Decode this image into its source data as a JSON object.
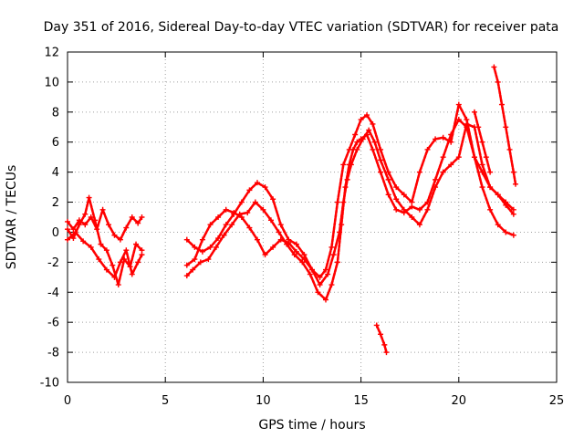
{
  "chart_data": {
    "type": "scatter",
    "title": "Day 351 of 2016, Sidereal Day-to-day VTEC variation (SDTVAR) for receiver pata",
    "xlabel": "GPS time / hours",
    "ylabel": "SDTVAR / TECUs",
    "xlim": [
      0,
      25
    ],
    "ylim": [
      -10,
      12
    ],
    "xticks": [
      "0",
      "5",
      "10",
      "15",
      "20",
      "25"
    ],
    "yticks": [
      "-10",
      "-8",
      "-6",
      "-4",
      "-2",
      "0",
      "2",
      "4",
      "6",
      "8",
      "10",
      "12"
    ],
    "grid": true,
    "marker": "+",
    "color": "#ff0000",
    "series": [
      {
        "name": "s1",
        "x": [
          0,
          0.3,
          0.6,
          0.9,
          1.2,
          1.5,
          1.8,
          2.1,
          2.4,
          2.7,
          3.0,
          3.3,
          3.6,
          3.8
        ],
        "y": [
          0.7,
          0.2,
          0.8,
          0.5,
          1.0,
          0.2,
          1.5,
          0.5,
          -0.2,
          -0.5,
          0.3,
          1.0,
          0.6,
          1.0
        ]
      },
      {
        "name": "s2",
        "x": [
          0,
          0.3,
          0.6,
          0.9,
          1.1,
          1.4,
          1.7,
          2.0,
          2.3,
          2.6,
          2.9,
          3.2,
          3.5,
          3.8
        ],
        "y": [
          0.2,
          -0.4,
          0.5,
          1.2,
          2.3,
          0.8,
          -0.8,
          -1.2,
          -2.2,
          -3.5,
          -1.8,
          -2.3,
          -0.8,
          -1.2
        ]
      },
      {
        "name": "s3",
        "x": [
          0,
          0.4,
          0.8,
          1.2,
          1.6,
          2.0,
          2.4,
          2.7,
          3.0,
          3.3,
          3.6,
          3.8
        ],
        "y": [
          -0.5,
          0.0,
          -0.6,
          -1.0,
          -1.8,
          -2.5,
          -3.0,
          -2.0,
          -1.2,
          -2.8,
          -2.0,
          -1.5
        ]
      },
      {
        "name": "s4",
        "x": [
          6.1,
          6.4,
          6.8,
          7.2,
          7.6,
          8.0,
          8.4,
          8.8,
          9.2,
          9.6,
          10.0,
          10.4,
          10.8,
          11.2,
          11.6,
          12.0,
          12.4,
          12.8,
          13.2,
          13.5,
          13.8,
          14.0,
          14.2,
          14.4,
          14.6,
          14.8,
          15.0,
          15.3,
          15.6,
          16.0,
          16.4,
          16.8,
          17.2,
          17.6,
          18.0,
          18.4,
          18.8,
          19.2,
          19.6,
          20.0,
          20.4,
          20.8,
          21.2,
          21.6,
          22.0,
          22.4,
          22.8
        ],
        "y": [
          -2.9,
          -2.5,
          -2.0,
          -1.8,
          -1.0,
          -0.2,
          0.5,
          1.2,
          1.3,
          2.0,
          1.5,
          0.8,
          0.0,
          -0.8,
          -1.5,
          -2.0,
          -2.8,
          -4.0,
          -4.5,
          -3.5,
          -2.0,
          0.5,
          3.0,
          4.5,
          5.5,
          6.0,
          6.2,
          6.5,
          5.5,
          4.0,
          2.5,
          1.5,
          1.3,
          1.7,
          1.5,
          2.0,
          3.5,
          5.0,
          6.5,
          7.5,
          7.0,
          5.0,
          3.0,
          1.5,
          0.5,
          0.0,
          -0.2
        ]
      },
      {
        "name": "s5",
        "x": [
          6.1,
          6.5,
          6.9,
          7.3,
          7.7,
          8.1,
          8.5,
          8.9,
          9.3,
          9.7,
          10.1,
          10.5,
          10.9,
          11.3,
          11.7,
          12.1,
          12.5,
          12.9,
          13.3,
          13.6,
          13.9,
          14.1,
          14.3,
          14.5,
          14.8,
          15.1,
          15.4,
          15.7,
          16.0,
          16.4,
          16.8,
          17.2,
          17.6,
          18.0,
          18.4,
          18.8,
          19.2,
          19.6,
          20.0,
          20.4,
          20.8,
          21.2,
          21.6,
          22.0,
          22.4,
          22.8
        ],
        "y": [
          -0.5,
          -1.0,
          -1.3,
          -1.0,
          -0.4,
          0.5,
          1.2,
          2.0,
          2.8,
          3.3,
          3.0,
          2.2,
          0.5,
          -0.5,
          -0.8,
          -1.5,
          -2.5,
          -3.5,
          -2.8,
          -1.5,
          0.0,
          2.0,
          3.5,
          4.5,
          5.5,
          6.2,
          6.8,
          6.0,
          4.8,
          3.5,
          2.2,
          1.5,
          1.0,
          0.5,
          1.5,
          3.0,
          4.0,
          4.5,
          5.0,
          7.2,
          7.0,
          4.5,
          3.0,
          2.5,
          2.0,
          1.5
        ]
      },
      {
        "name": "s6",
        "x": [
          6.1,
          6.5,
          6.9,
          7.3,
          7.7,
          8.1,
          8.5,
          8.9,
          9.3,
          9.7,
          10.1,
          10.5,
          10.9,
          11.3,
          11.7,
          12.1,
          12.5,
          12.9,
          13.2,
          13.5,
          13.8,
          14.1,
          14.4,
          14.7,
          15.0,
          15.3,
          15.6,
          16.0,
          16.4,
          16.8,
          17.2,
          17.6,
          18.0,
          18.4,
          18.8,
          19.2,
          19.6,
          20.0,
          20.4,
          20.8,
          21.2,
          21.6,
          22.0,
          22.4,
          22.8
        ],
        "y": [
          -2.2,
          -1.8,
          -0.5,
          0.5,
          1.0,
          1.5,
          1.3,
          1.0,
          0.3,
          -0.5,
          -1.5,
          -1.0,
          -0.5,
          -0.7,
          -1.3,
          -1.8,
          -2.5,
          -3.0,
          -2.5,
          -1.0,
          2.0,
          4.5,
          5.5,
          6.5,
          7.5,
          7.8,
          7.2,
          5.5,
          4.0,
          3.0,
          2.5,
          2.0,
          4.0,
          5.5,
          6.2,
          6.3,
          6.0,
          8.5,
          7.5,
          5.0,
          4.0,
          3.0,
          2.5,
          1.8,
          1.2
        ]
      },
      {
        "name": "s7",
        "x": [
          15.8,
          16.0,
          16.2,
          16.3
        ],
        "y": [
          -6.2,
          -6.8,
          -7.5,
          -8.0
        ]
      },
      {
        "name": "s8",
        "x": [
          21.8,
          22.0,
          22.2,
          22.4,
          22.6,
          22.8,
          22.9
        ],
        "y": [
          11.0,
          10.0,
          8.5,
          7.0,
          5.5,
          4.0,
          3.2
        ]
      },
      {
        "name": "s9",
        "x": [
          20.8,
          21.0,
          21.2,
          21.4,
          21.6
        ],
        "y": [
          8.0,
          7.0,
          6.0,
          5.0,
          4.0
        ]
      }
    ]
  }
}
